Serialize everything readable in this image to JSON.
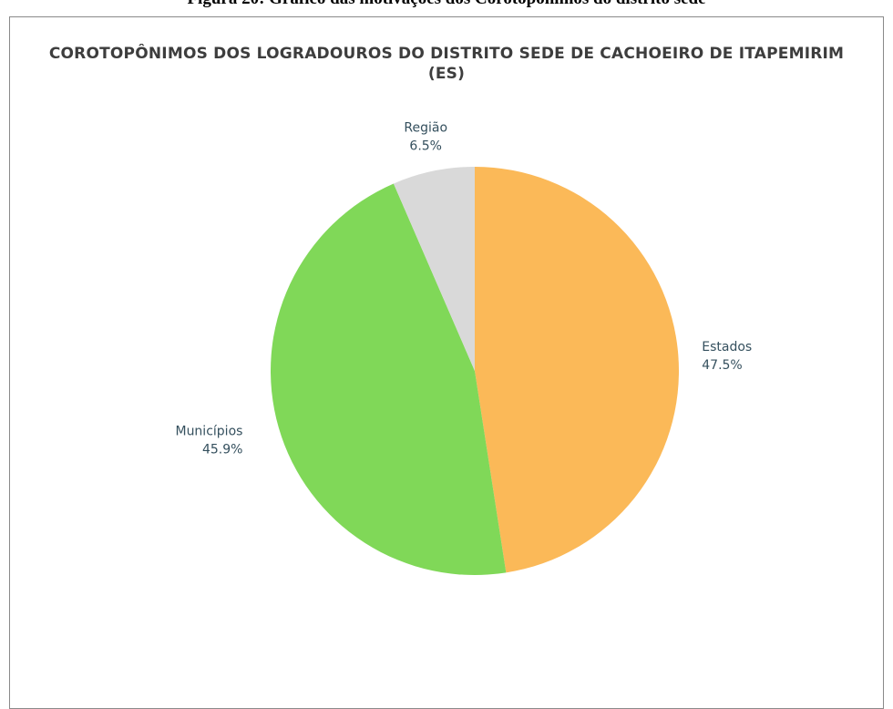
{
  "caption": "Figura 20: Gráfico das motivações dos Corotopônimos do distrito sede",
  "chart_data": {
    "type": "pie",
    "title": "COROTOPÔNIMOS DOS LOGRADOUROS DO DISTRITO SEDE DE CACHOEIRO DE ITAPEMIRIM (ES)",
    "categories": [
      "Estados",
      "Municípios",
      "Região"
    ],
    "values": [
      47.5,
      45.9,
      6.5
    ],
    "value_labels": [
      "47.5%",
      "45.9%",
      "6.5%"
    ],
    "colors": [
      "#FBB958",
      "#80D858",
      "#D9D9D9"
    ],
    "legend": "none"
  }
}
